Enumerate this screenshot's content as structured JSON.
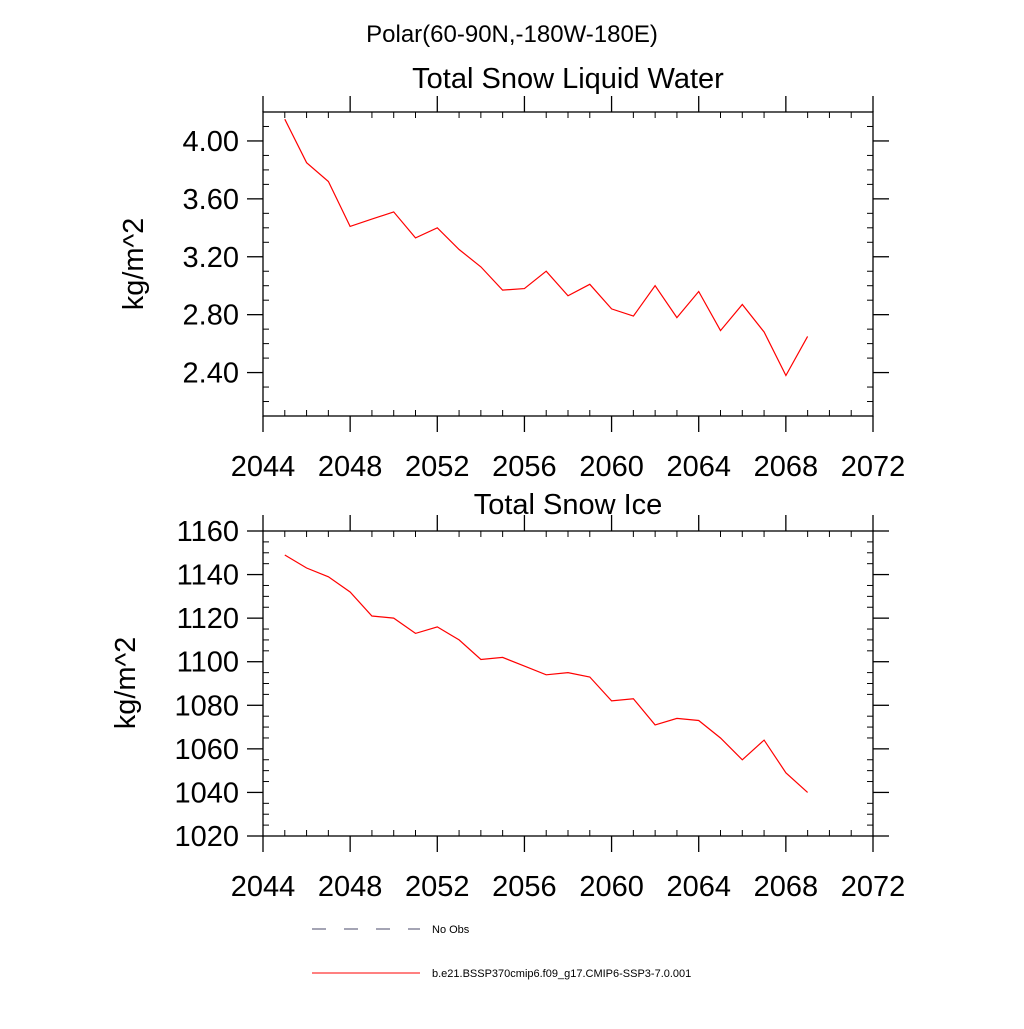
{
  "header": {
    "region_title": "Polar(60-90N,-180W-180E)"
  },
  "chart_data": [
    {
      "type": "line",
      "title": "Total Snow Liquid Water",
      "ylabel": "kg/m^2",
      "xlabel": "",
      "xlim": [
        2044,
        2072
      ],
      "ylim": [
        2.1,
        4.2
      ],
      "xticks": [
        2044,
        2048,
        2052,
        2056,
        2060,
        2064,
        2068,
        2072
      ],
      "xtick_labels": [
        "2044",
        "2048",
        "2052",
        "2056",
        "2060",
        "2064",
        "2068",
        "2072"
      ],
      "yticks": [
        2.4,
        2.8,
        3.2,
        3.6,
        4.0
      ],
      "ytick_labels": [
        "2.40",
        "2.80",
        "3.20",
        "3.60",
        "4.00"
      ],
      "grid": false,
      "series": [
        {
          "name": "b.e21.BSSP370cmip6.f09_g17.CMIP6-SSP3-7.0.001",
          "color": "#ff0000",
          "x": [
            2045,
            2046,
            2047,
            2048,
            2049,
            2050,
            2051,
            2052,
            2053,
            2054,
            2055,
            2056,
            2057,
            2058,
            2059,
            2060,
            2061,
            2062,
            2063,
            2064,
            2065,
            2066,
            2067,
            2068,
            2069
          ],
          "y": [
            4.15,
            3.85,
            3.72,
            3.41,
            3.46,
            3.51,
            3.33,
            3.4,
            3.25,
            3.13,
            2.97,
            2.98,
            3.1,
            2.93,
            3.01,
            2.84,
            2.79,
            3.0,
            2.78,
            2.96,
            2.69,
            2.87,
            2.68,
            2.38,
            2.65
          ]
        }
      ]
    },
    {
      "type": "line",
      "title": "Total Snow Ice",
      "ylabel": "kg/m^2",
      "xlabel": "",
      "xlim": [
        2044,
        2072
      ],
      "ylim": [
        1020,
        1160
      ],
      "xticks": [
        2044,
        2048,
        2052,
        2056,
        2060,
        2064,
        2068,
        2072
      ],
      "xtick_labels": [
        "2044",
        "2048",
        "2052",
        "2056",
        "2060",
        "2064",
        "2068",
        "2072"
      ],
      "yticks": [
        1020,
        1040,
        1060,
        1080,
        1100,
        1120,
        1140,
        1160
      ],
      "ytick_labels": [
        "1020",
        "1040",
        "1060",
        "1080",
        "1100",
        "1120",
        "1140",
        "1160"
      ],
      "grid": false,
      "series": [
        {
          "name": "b.e21.BSSP370cmip6.f09_g17.CMIP6-SSP3-7.0.001",
          "color": "#ff0000",
          "x": [
            2045,
            2046,
            2047,
            2048,
            2049,
            2050,
            2051,
            2052,
            2053,
            2054,
            2055,
            2056,
            2057,
            2058,
            2059,
            2060,
            2061,
            2062,
            2063,
            2064,
            2065,
            2066,
            2067,
            2068,
            2069
          ],
          "y": [
            1149,
            1143,
            1139,
            1132,
            1121,
            1120,
            1113,
            1116,
            1110,
            1101,
            1102,
            1098,
            1094,
            1095,
            1093,
            1082,
            1083,
            1071,
            1074,
            1073,
            1065,
            1055,
            1064,
            1049,
            1040
          ]
        }
      ]
    }
  ],
  "legend": {
    "placement": "bottom-center",
    "items": [
      {
        "label": "No Obs",
        "style": "dashed",
        "color": "#4a4a6a"
      },
      {
        "label": "b.e21.BSSP370cmip6.f09_g17.CMIP6-SSP3-7.0.001",
        "style": "solid",
        "color": "#ff0000"
      }
    ]
  }
}
